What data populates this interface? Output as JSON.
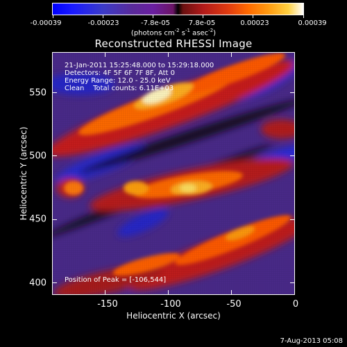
{
  "colorbar": {
    "ticks": [
      "-0.00039",
      "-0.00023",
      "-7.8e-05",
      "7.8e-05",
      "0.00023",
      "0.00039"
    ],
    "units_prefix": "(photons cm",
    "units_sup1": "-2",
    "units_mid1": " s",
    "units_sup2": "-1",
    "units_mid2": " asec",
    "units_sup3": "-2",
    "units_suffix": ")"
  },
  "title": "Reconstructed RHESSI Image",
  "info": {
    "line1": "21-Jan-2011 15:25:48.000 to 15:29:18.000",
    "line2": "Detectors: 4F 5F 6F 7F 8F, Att 0",
    "line3": "Energy Range: 12.0 - 25.0 keV",
    "line4": "Clean    Total counts: 6.11E+03",
    "position": "Position of Peak = [-106,544]"
  },
  "axes": {
    "x_title": "Heliocentric X (arcsec)",
    "y_title": "Heliocentric Y (arcsec)",
    "x_ticks": [
      "-150",
      "-100",
      "-50",
      "0"
    ],
    "y_ticks": [
      "400",
      "450",
      "500",
      "550"
    ]
  },
  "footer": {
    "date": "7-Aug-2013 05:08"
  },
  "colors": {
    "background": "#000000",
    "peak": "#ffffff",
    "positive": "#ff6a00",
    "negative": "#3b3bc8"
  }
}
